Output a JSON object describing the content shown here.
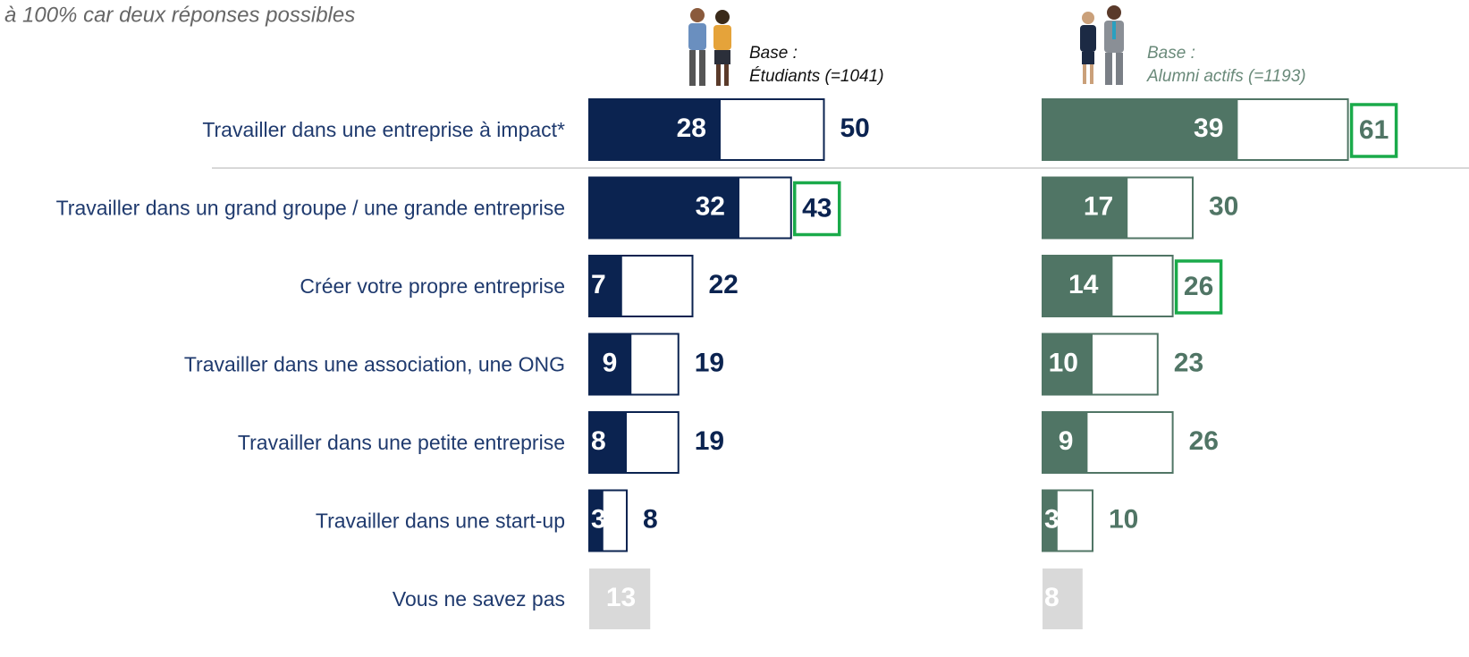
{
  "chart_data": {
    "type": "bar",
    "subtitle": "à 100% car deux réponses possibles",
    "categories": [
      "Travailler dans une entreprise à impact*",
      "Travailler dans un grand groupe / une grande entreprise",
      "Créer votre propre entreprise",
      "Travailler dans une association, une ONG",
      "Travailler dans une petite entreprise",
      "Travailler dans une start-up",
      "Vous ne savez pas"
    ],
    "xlim": [
      0,
      100
    ],
    "highlight_color": "#1aaa4a",
    "dont_know_color": "#d9d9d9",
    "panels": [
      {
        "base": "Base :",
        "name": "Étudiants (=1041)",
        "color": "#0b2350",
        "values": [
          28,
          32,
          7,
          9,
          8,
          3,
          13
        ],
        "totals": [
          50,
          43,
          22,
          19,
          19,
          8,
          null
        ],
        "highlight": [
          false,
          true,
          false,
          false,
          false,
          false,
          false
        ]
      },
      {
        "base": "Base :",
        "name": "Alumni actifs (=1193)",
        "color": "#507565",
        "values": [
          39,
          17,
          14,
          10,
          9,
          3,
          8
        ],
        "totals": [
          61,
          30,
          26,
          23,
          26,
          10,
          null
        ],
        "highlight": [
          true,
          false,
          true,
          false,
          false,
          false,
          false
        ]
      }
    ]
  }
}
